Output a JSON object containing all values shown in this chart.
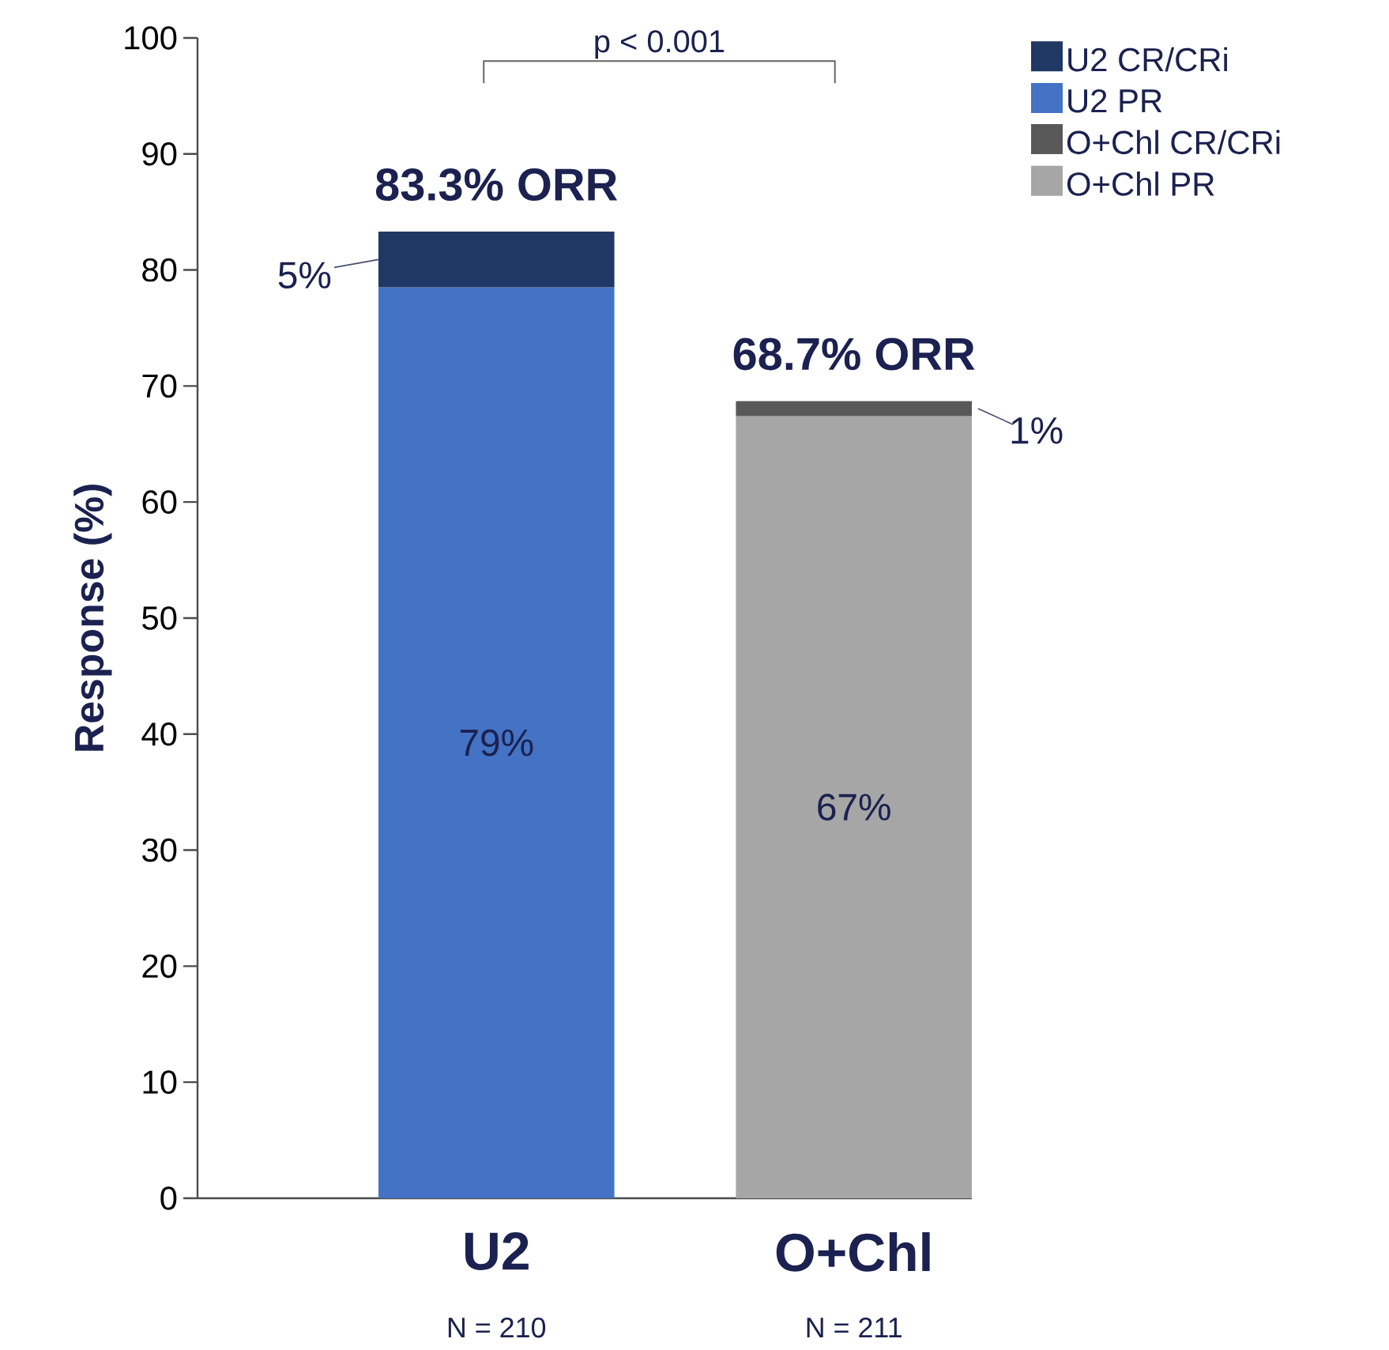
{
  "chart_data": {
    "type": "bar",
    "stacked": true,
    "ylabel": "Response (%)",
    "categories": [
      "U2",
      "O+Chl"
    ],
    "series": [
      {
        "name": "U2 PR",
        "color": "#4472c4",
        "values": [
          78.5,
          null
        ],
        "value_labels": [
          "79%",
          null
        ]
      },
      {
        "name": "U2 CR/CRi",
        "color": "#1f3864",
        "values": [
          4.8,
          null
        ],
        "value_labels": [
          "5%",
          null
        ]
      },
      {
        "name": "O+Chl PR",
        "color": "#a6a6a6",
        "values": [
          null,
          67.4
        ],
        "value_labels": [
          null,
          "67%"
        ]
      },
      {
        "name": "O+Chl CR/CRi",
        "color": "#595959",
        "values": [
          null,
          1.3
        ],
        "value_labels": [
          null,
          "1%"
        ]
      }
    ],
    "ylim": [
      0,
      100
    ],
    "yticks": [
      0,
      10,
      20,
      30,
      40,
      50,
      60,
      70,
      80,
      90,
      100
    ],
    "legend": "top right",
    "grid": false,
    "annotations": [
      {
        "text": "83.3% ORR",
        "x": "U2",
        "y": 83.3
      },
      {
        "text": "68.7% ORR",
        "x": "O+Chl",
        "y": 68.7
      },
      "p < 0.001",
      "N = 210",
      "N = 211"
    ]
  }
}
